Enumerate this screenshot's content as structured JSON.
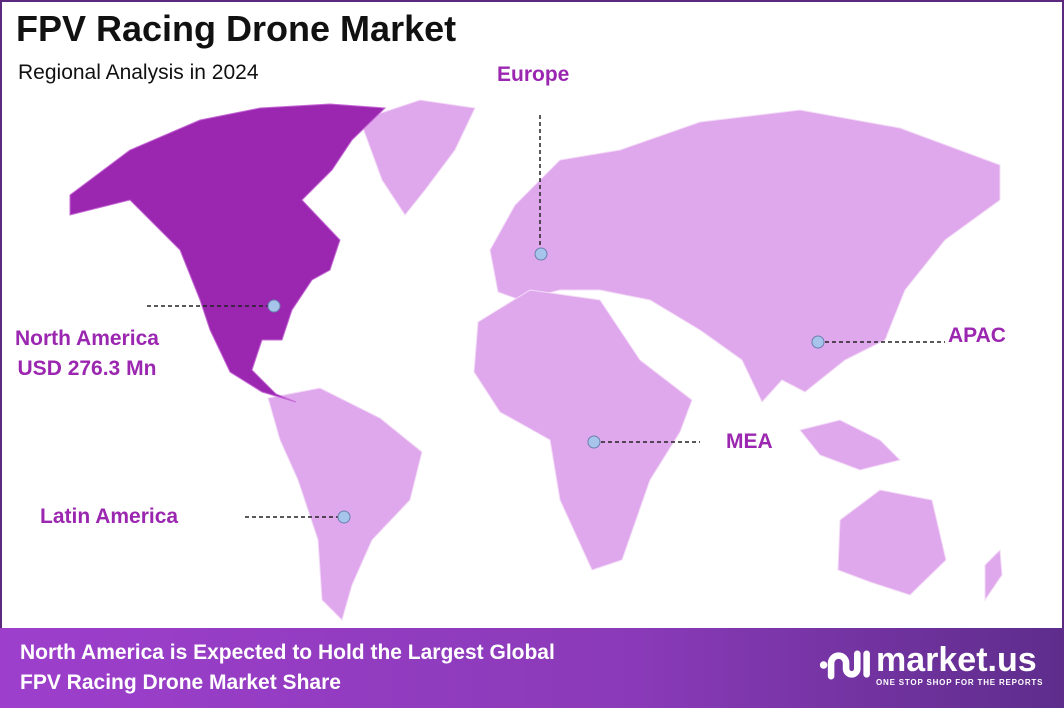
{
  "header": {
    "title": "FPV Racing Drone Market",
    "subtitle": "Regional Analysis in 2024"
  },
  "colors": {
    "highlight_region": "#9b27b0",
    "other_regions": "#e0a8ec",
    "label": "#9b27b0",
    "marker": "#a7c4ea",
    "border": "#5b2a7e"
  },
  "regions": [
    {
      "name": "North America",
      "value": "USD 276.3 Mn",
      "highlighted": true
    },
    {
      "name": "Europe"
    },
    {
      "name": "APAC"
    },
    {
      "name": "MEA"
    },
    {
      "name": "Latin America"
    }
  ],
  "footer": {
    "line1": "North America is Expected to Hold the Largest Global",
    "line2": "FPV Racing Drone Market Share"
  },
  "logo": {
    "name": "market.us",
    "tagline": "ONE STOP SHOP FOR THE REPORTS"
  }
}
